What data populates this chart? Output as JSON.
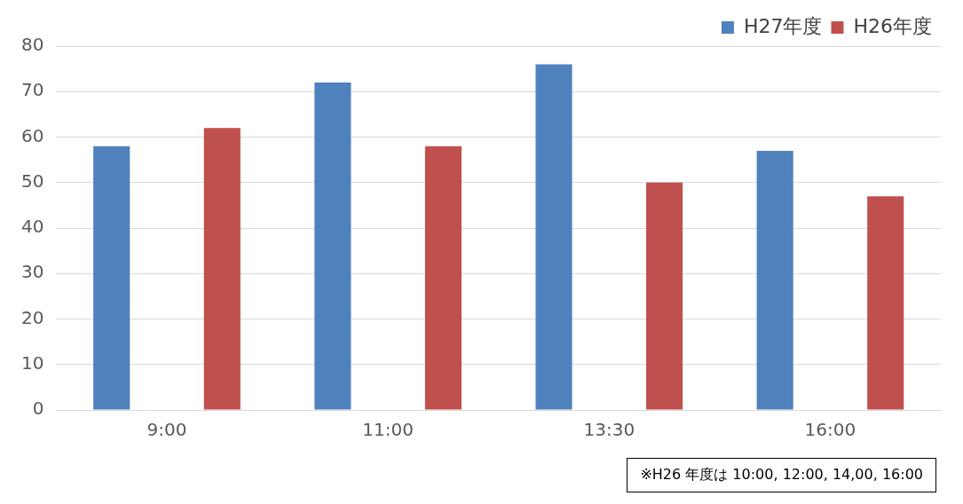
{
  "chart_data": {
    "type": "bar",
    "categories": [
      "9:00",
      "11:00",
      "13:30",
      "16:00"
    ],
    "series": [
      {
        "name": "H27年度",
        "color": "#4f81bd",
        "values": [
          58,
          72,
          76,
          57
        ]
      },
      {
        "name": "H26年度",
        "color": "#c0504d",
        "values": [
          62,
          58,
          50,
          47
        ]
      }
    ],
    "ylim": [
      0,
      80
    ],
    "yticks": [
      0,
      10,
      20,
      30,
      40,
      50,
      60,
      70,
      80
    ],
    "grid": "y",
    "legend": "top right",
    "annotations": [
      "※H26 年度は 10:00, 12:00, 14,00, 16:00"
    ]
  }
}
